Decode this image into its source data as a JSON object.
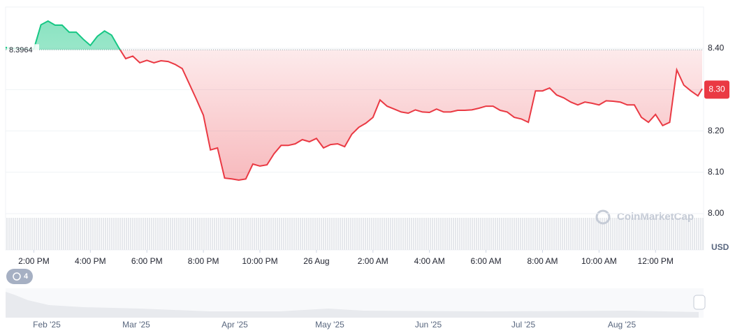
{
  "chart_data": {
    "type": "line",
    "series": [
      {
        "name": "Price",
        "color_up": "#16c784",
        "color_down": "#ea3943",
        "x": [
          13,
          13.25,
          13.5,
          13.75,
          14,
          14.25,
          14.5,
          14.75,
          15,
          15.25,
          15.5,
          15.75,
          16,
          16.25,
          16.5,
          16.75,
          17,
          17.25,
          17.5,
          17.75,
          18,
          18.25,
          18.5,
          18.75,
          19,
          19.25,
          19.5,
          19.75,
          20,
          20.25,
          20.5,
          20.75,
          21,
          21.25,
          21.5,
          21.75,
          22,
          22.25,
          22.5,
          22.75,
          23,
          23.25,
          23.5,
          23.75,
          24,
          24.25,
          24.5,
          24.75,
          25,
          25.25,
          25.5,
          25.75,
          26,
          26.25,
          26.5,
          26.75,
          27,
          27.25,
          27.5,
          27.75,
          28,
          28.25,
          28.5,
          28.75,
          29,
          29.25,
          29.5,
          29.75,
          30,
          30.25,
          30.5,
          30.75,
          31,
          31.25,
          31.5,
          31.75,
          32,
          32.25,
          32.5,
          32.75,
          33,
          33.25,
          33.5,
          33.75,
          34,
          34.25,
          34.5,
          34.75,
          35,
          35.25,
          35.5,
          35.75,
          36,
          36.25,
          36.5,
          36.75,
          37,
          37.25,
          37.5,
          37.65
        ],
        "values": [
          8.402,
          8.4,
          8.4,
          8.398,
          8.398,
          8.457,
          8.466,
          8.456,
          8.456,
          8.439,
          8.439,
          8.422,
          8.407,
          8.429,
          8.442,
          8.432,
          8.402,
          8.375,
          8.381,
          8.365,
          8.371,
          8.365,
          8.37,
          8.368,
          8.361,
          8.351,
          8.314,
          8.277,
          8.238,
          8.154,
          8.159,
          8.086,
          8.084,
          8.081,
          8.084,
          8.12,
          8.115,
          8.118,
          8.145,
          8.165,
          8.165,
          8.169,
          8.179,
          8.174,
          8.182,
          8.159,
          8.167,
          8.169,
          8.162,
          8.192,
          8.209,
          8.219,
          8.233,
          8.275,
          8.26,
          8.253,
          8.246,
          8.243,
          8.251,
          8.246,
          8.245,
          8.253,
          8.246,
          8.246,
          8.25,
          8.25,
          8.251,
          8.255,
          8.26,
          8.26,
          8.25,
          8.246,
          8.233,
          8.229,
          8.221,
          8.297,
          8.297,
          8.304,
          8.287,
          8.28,
          8.27,
          8.263,
          8.27,
          8.267,
          8.263,
          8.273,
          8.272,
          8.27,
          8.263,
          8.263,
          8.233,
          8.221,
          8.24,
          8.213,
          8.221,
          8.348,
          8.311,
          8.297,
          8.285,
          8.302
        ]
      }
    ],
    "baseline": 8.3964,
    "current_price": {
      "value": 8.3,
      "label": "8.30"
    },
    "xlim": [
      13,
      37.7
    ],
    "xticks": [
      {
        "value": 14,
        "label": "2:00 PM"
      },
      {
        "value": 16,
        "label": "4:00 PM"
      },
      {
        "value": 18,
        "label": "6:00 PM"
      },
      {
        "value": 20,
        "label": "8:00 PM"
      },
      {
        "value": 22,
        "label": "10:00 PM"
      },
      {
        "value": 24,
        "label": "26 Aug"
      },
      {
        "value": 26,
        "label": "2:00 AM"
      },
      {
        "value": 28,
        "label": "4:00 AM"
      },
      {
        "value": 30,
        "label": "6:00 AM"
      },
      {
        "value": 32,
        "label": "8:00 AM"
      },
      {
        "value": 34,
        "label": "10:00 AM"
      },
      {
        "value": 36,
        "label": "12:00 PM"
      }
    ],
    "ylim": [
      8.0,
      8.5
    ],
    "yticks": [
      {
        "value": 8.0,
        "label": "8.00"
      },
      {
        "value": 8.1,
        "label": "8.10"
      },
      {
        "value": 8.2,
        "label": "8.20"
      },
      {
        "value": 8.3,
        "label": "8.30"
      },
      {
        "value": 8.4,
        "label": "8.40"
      }
    ],
    "y_unit": "USD",
    "grid": true,
    "watermark": "CoinMarketCap",
    "history_badge": "4",
    "navigator_labels": [
      "Feb '25",
      "Mar '25",
      "Apr '25",
      "May '25",
      "Jun '25",
      "Jul '25",
      "Aug '25"
    ]
  }
}
